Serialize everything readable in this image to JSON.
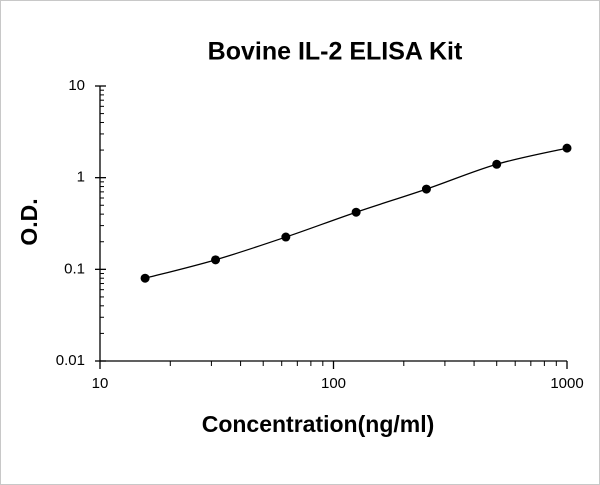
{
  "chart_data": {
    "type": "scatter",
    "title": "Bovine IL-2 ELISA Kit",
    "xlabel": "Concentration(ng/ml)",
    "ylabel": "O.D.",
    "x": [
      15.6,
      31.25,
      62.5,
      125,
      250,
      500,
      1000
    ],
    "y": [
      0.08,
      0.127,
      0.225,
      0.42,
      0.75,
      1.4,
      2.1
    ],
    "color": "#000000",
    "fit_line": true,
    "xscale": "log",
    "yscale": "log",
    "xlim": [
      10,
      1000
    ],
    "ylim": [
      0.01,
      10
    ],
    "xticks": [
      10,
      100,
      1000
    ],
    "yticks": [
      0.01,
      0.1,
      1,
      10
    ]
  }
}
